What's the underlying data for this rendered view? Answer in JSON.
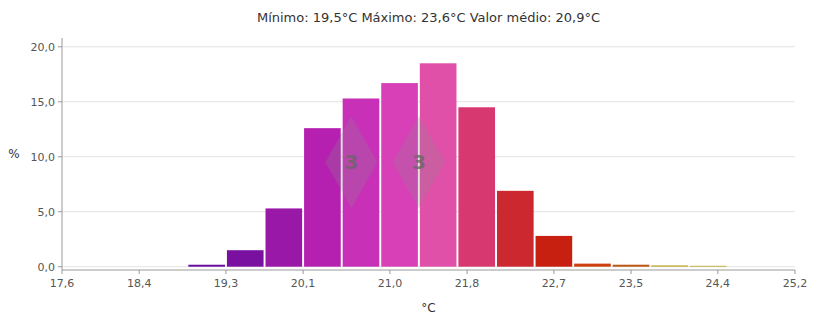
{
  "chart_data": {
    "type": "bar",
    "title": "Mínimo: 19,5°C    Máximo: 23,6°C    Valor médio: 20,9°C",
    "x_label": "°C",
    "y_label": "%",
    "x": [
      19.1,
      19.5,
      19.9,
      20.3,
      20.7,
      21.1,
      21.5,
      21.9,
      22.3,
      22.7,
      23.1,
      23.5,
      23.9,
      24.3
    ],
    "values": [
      0.18,
      1.5,
      5.3,
      12.6,
      15.3,
      16.7,
      18.5,
      14.5,
      6.9,
      2.8,
      0.28,
      0.18,
      0.12,
      0.08
    ],
    "colors": [
      "#6B0EA0",
      "#7A10A0",
      "#9918A8",
      "#B520B0",
      "#C830B8",
      "#D840B8",
      "#E050A8",
      "#D83870",
      "#CC2830",
      "#C82010",
      "#CC4010",
      "#BB5510",
      "#BBAA30",
      "#BBAA30"
    ],
    "xlim": [
      17.6,
      25.2
    ],
    "ylim": [
      -0.3,
      20.8
    ],
    "xticks": [
      {
        "value": 17.6,
        "label": "17,6"
      },
      {
        "value": 18.4,
        "label": "18,4"
      },
      {
        "value": 19.3,
        "label": "19,3"
      },
      {
        "value": 20.1,
        "label": "20,1"
      },
      {
        "value": 21.0,
        "label": "21,0"
      },
      {
        "value": 21.8,
        "label": "21,8"
      },
      {
        "value": 22.7,
        "label": "22,7"
      },
      {
        "value": 23.5,
        "label": "23,5"
      },
      {
        "value": 24.4,
        "label": "24,4"
      },
      {
        "value": 25.2,
        "label": "25,2"
      }
    ],
    "yticks": [
      {
        "value": 0.0,
        "label": "0,0"
      },
      {
        "value": 5.0,
        "label": "5,0"
      },
      {
        "value": 10.0,
        "label": "10,0"
      },
      {
        "value": 15.0,
        "label": "15,0"
      },
      {
        "value": 20.0,
        "label": "20,0"
      }
    ],
    "annotations": [
      {
        "text": "3",
        "x": 20.6,
        "y": 9.5
      },
      {
        "text": "3",
        "x": 21.3,
        "y": 9.5
      }
    ],
    "grid": true
  }
}
